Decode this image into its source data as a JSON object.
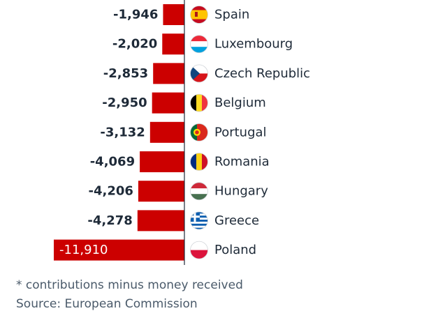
{
  "chart_data": {
    "type": "bar",
    "orientation": "horizontal",
    "categories": [
      "Spain",
      "Luxembourg",
      "Czech Republic",
      "Belgium",
      "Portugal",
      "Romania",
      "Hungary",
      "Greece",
      "Poland"
    ],
    "value_labels": [
      "-1,946",
      "-2,020",
      "-2,853",
      "-2,950",
      "-3,132",
      "-4,069",
      "-4,206",
      "-4,278",
      "-11,910"
    ],
    "values": [
      -1946,
      -2020,
      -2853,
      -2950,
      -3132,
      -4069,
      -4206,
      -4278,
      -11910
    ],
    "flag_icons": [
      "spain-flag-icon",
      "luxembourg-flag-icon",
      "czech-republic-flag-icon",
      "belgium-flag-icon",
      "portugal-flag-icon",
      "romania-flag-icon",
      "hungary-flag-icon",
      "greece-flag-icon",
      "poland-flag-icon"
    ],
    "bar_color": "#cc0000",
    "grid": false
  },
  "footnotes": {
    "note": "* contributions minus money received",
    "source": "Source: European Commission"
  }
}
